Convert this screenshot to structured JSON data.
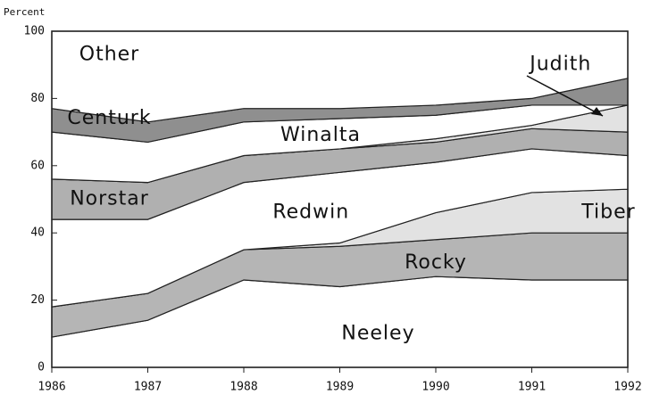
{
  "chart_data": {
    "type": "stacked_area",
    "y_label": "Percent",
    "x": [
      1986,
      1987,
      1988,
      1989,
      1990,
      1991,
      1992
    ],
    "xlim": [
      1986,
      1992
    ],
    "xticks": [
      1986,
      1987,
      1988,
      1989,
      1990,
      1991,
      1992
    ],
    "ylim": [
      0,
      100
    ],
    "yticks": [
      0,
      20,
      40,
      60,
      80,
      100
    ],
    "series": [
      {
        "name": "Neeley",
        "color": "#ffffff",
        "values": [
          9,
          14,
          26,
          24,
          27,
          26,
          26
        ]
      },
      {
        "name": "Rocky",
        "color": "#b5b5b5",
        "values": [
          9,
          8,
          9,
          12,
          11,
          14,
          14
        ]
      },
      {
        "name": "Tiber",
        "color": "#e2e2e2",
        "values": [
          0,
          0,
          0,
          1,
          8,
          12,
          13
        ]
      },
      {
        "name": "Redwin",
        "color": "#ffffff",
        "values": [
          26,
          22,
          20,
          21,
          15,
          13,
          10
        ]
      },
      {
        "name": "Norstar",
        "color": "#b0b0b0",
        "values": [
          12,
          11,
          8,
          7,
          6,
          6,
          7
        ]
      },
      {
        "name": "Judith",
        "color": "#e2e2e2",
        "values": [
          0,
          0,
          0,
          0,
          1,
          1,
          8
        ]
      },
      {
        "name": "Winalta",
        "color": "#ffffff",
        "values": [
          14,
          12,
          10,
          9,
          7,
          6,
          0
        ]
      },
      {
        "name": "Centurk",
        "color": "#8f8f8f",
        "values": [
          7,
          6,
          4,
          3,
          3,
          2,
          8
        ]
      },
      {
        "name": "Other",
        "color": "#ffffff",
        "values": [
          23,
          27,
          23,
          23,
          22,
          20,
          14
        ]
      }
    ]
  }
}
